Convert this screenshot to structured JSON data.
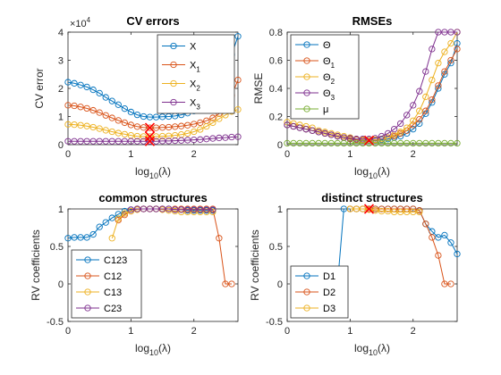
{
  "chart_data": [
    {
      "id": "cv",
      "type": "line",
      "title": "CV errors",
      "xlabel": "log10(λ)",
      "ylabel": "CV error",
      "y_multiplier": "×10^4",
      "xlim": [
        0,
        2.7
      ],
      "ylim": [
        0,
        4
      ],
      "xticks": [
        0,
        1,
        2
      ],
      "yticks": [
        0,
        1,
        2,
        3,
        4
      ],
      "grid": false,
      "legend_position": "top-right",
      "x": [
        0,
        0.1,
        0.2,
        0.3,
        0.4,
        0.5,
        0.6,
        0.7,
        0.8,
        0.9,
        1.0,
        1.1,
        1.2,
        1.3,
        1.4,
        1.5,
        1.6,
        1.7,
        1.8,
        1.9,
        2.0,
        2.1,
        2.2,
        2.3,
        2.4,
        2.5,
        2.6,
        2.7
      ],
      "series": [
        {
          "name": "X",
          "sub": "",
          "color": "#0072BD",
          "values": [
            2.22,
            2.18,
            2.12,
            2.05,
            1.95,
            1.83,
            1.68,
            1.55,
            1.42,
            1.28,
            1.16,
            1.06,
            1.0,
            0.98,
            0.98,
            0.99,
            1.0,
            1.02,
            1.06,
            1.12,
            1.2,
            1.3,
            1.45,
            1.65,
            2.0,
            2.7,
            3.2,
            3.85
          ]
        },
        {
          "name": "X",
          "sub": "1",
          "color": "#D95319",
          "values": [
            1.4,
            1.38,
            1.34,
            1.29,
            1.22,
            1.14,
            1.04,
            0.95,
            0.86,
            0.78,
            0.7,
            0.64,
            0.61,
            0.6,
            0.6,
            0.61,
            0.62,
            0.64,
            0.66,
            0.69,
            0.73,
            0.78,
            0.85,
            0.95,
            1.1,
            1.35,
            1.75,
            2.3
          ]
        },
        {
          "name": "X",
          "sub": "2",
          "color": "#EDB120",
          "values": [
            0.72,
            0.71,
            0.69,
            0.66,
            0.62,
            0.57,
            0.51,
            0.46,
            0.41,
            0.37,
            0.33,
            0.3,
            0.29,
            0.29,
            0.29,
            0.3,
            0.31,
            0.33,
            0.36,
            0.4,
            0.46,
            0.54,
            0.65,
            0.78,
            0.92,
            1.05,
            1.18,
            1.25
          ]
        },
        {
          "name": "X",
          "sub": "3",
          "color": "#7E2F8E",
          "values": [
            0.12,
            0.12,
            0.12,
            0.12,
            0.12,
            0.12,
            0.12,
            0.12,
            0.12,
            0.12,
            0.12,
            0.12,
            0.12,
            0.12,
            0.12,
            0.13,
            0.13,
            0.14,
            0.15,
            0.16,
            0.17,
            0.18,
            0.2,
            0.22,
            0.24,
            0.25,
            0.27,
            0.28
          ]
        }
      ],
      "marker_x": 1.3,
      "marker_values": [
        0.6,
        0.29,
        0.12
      ]
    },
    {
      "id": "rmse",
      "type": "line",
      "title": "RMSEs",
      "xlabel": "log10(λ)",
      "ylabel": "RMSE",
      "xlim": [
        0,
        2.7
      ],
      "ylim": [
        0,
        0.8
      ],
      "xticks": [
        0,
        1,
        2
      ],
      "yticks": [
        0,
        0.2,
        0.4,
        0.6,
        0.8
      ],
      "ytick_labels": [
        "0",
        "0.2",
        "0.4",
        "0.6",
        "0.8"
      ],
      "grid": false,
      "legend_position": "top-left",
      "x": [
        0,
        0.1,
        0.2,
        0.3,
        0.4,
        0.5,
        0.6,
        0.7,
        0.8,
        0.9,
        1.0,
        1.1,
        1.2,
        1.3,
        1.4,
        1.5,
        1.6,
        1.7,
        1.8,
        1.9,
        2.0,
        2.1,
        2.2,
        2.3,
        2.4,
        2.5,
        2.6,
        2.7
      ],
      "series": [
        {
          "name": "Θ",
          "sub": "",
          "color": "#0072BD",
          "values": [
            0.14,
            0.13,
            0.12,
            0.11,
            0.1,
            0.09,
            0.08,
            0.07,
            0.06,
            0.05,
            0.04,
            0.035,
            0.03,
            0.03,
            0.03,
            0.035,
            0.04,
            0.05,
            0.06,
            0.08,
            0.11,
            0.15,
            0.22,
            0.3,
            0.4,
            0.5,
            0.58,
            0.72
          ]
        },
        {
          "name": "Θ",
          "sub": "1",
          "color": "#D95319",
          "values": [
            0.14,
            0.13,
            0.12,
            0.11,
            0.1,
            0.09,
            0.08,
            0.07,
            0.06,
            0.05,
            0.04,
            0.035,
            0.03,
            0.03,
            0.035,
            0.04,
            0.05,
            0.06,
            0.08,
            0.1,
            0.14,
            0.18,
            0.24,
            0.32,
            0.42,
            0.52,
            0.6,
            0.68
          ]
        },
        {
          "name": "Θ",
          "sub": "2",
          "color": "#EDB120",
          "values": [
            0.16,
            0.15,
            0.14,
            0.13,
            0.12,
            0.1,
            0.09,
            0.08,
            0.07,
            0.06,
            0.05,
            0.04,
            0.035,
            0.03,
            0.035,
            0.04,
            0.05,
            0.07,
            0.09,
            0.12,
            0.17,
            0.24,
            0.34,
            0.46,
            0.58,
            0.66,
            0.72,
            0.8
          ]
        },
        {
          "name": "Θ",
          "sub": "3",
          "color": "#7E2F8E",
          "values": [
            0.14,
            0.13,
            0.12,
            0.11,
            0.1,
            0.09,
            0.08,
            0.07,
            0.06,
            0.05,
            0.045,
            0.04,
            0.04,
            0.04,
            0.045,
            0.06,
            0.08,
            0.11,
            0.15,
            0.21,
            0.28,
            0.38,
            0.52,
            0.68,
            0.8,
            0.8,
            0.8,
            0.8
          ]
        },
        {
          "name": "μ",
          "sub": "",
          "color": "#77AC30",
          "values": [
            0.01,
            0.01,
            0.01,
            0.01,
            0.01,
            0.01,
            0.01,
            0.01,
            0.01,
            0.01,
            0.01,
            0.01,
            0.01,
            0.01,
            0.01,
            0.01,
            0.01,
            0.01,
            0.01,
            0.01,
            0.01,
            0.01,
            0.01,
            0.01,
            0.01,
            0.01,
            0.01,
            0.01
          ]
        }
      ],
      "marker_x": 1.3,
      "marker_values": [
        0.03
      ]
    },
    {
      "id": "common",
      "type": "line",
      "title": "common structures",
      "xlabel": "log10(λ)",
      "ylabel": "RV coefficients",
      "xlim": [
        0,
        2.7
      ],
      "ylim": [
        -0.5,
        1
      ],
      "xticks": [
        0,
        1,
        2
      ],
      "yticks": [
        -0.5,
        0,
        0.5,
        1
      ],
      "ytick_labels": [
        "-0.5",
        "0",
        "0.5",
        "1"
      ],
      "grid": false,
      "legend_position": "bottom-left",
      "x": [
        0,
        0.1,
        0.2,
        0.3,
        0.4,
        0.5,
        0.6,
        0.7,
        0.8,
        0.9,
        1.0,
        1.1,
        1.2,
        1.3,
        1.4,
        1.5,
        1.6,
        1.7,
        1.8,
        1.9,
        2.0,
        2.1,
        2.2,
        2.3,
        2.4,
        2.5,
        2.6,
        2.7
      ],
      "series": [
        {
          "name": "C123",
          "color": "#0072BD",
          "x": [
            0,
            0.1,
            0.2,
            0.3,
            0.4,
            0.5,
            0.6,
            0.7,
            0.8,
            0.9,
            1.0,
            1.1,
            1.2,
            1.3,
            1.4,
            1.5,
            1.6,
            1.7,
            1.8,
            1.9,
            2.0,
            2.1,
            2.2,
            2.3
          ],
          "values": [
            0.61,
            0.62,
            0.62,
            0.62,
            0.66,
            0.76,
            0.82,
            0.88,
            0.93,
            0.97,
            0.99,
            1.0,
            1.0,
            1.0,
            1.0,
            1.0,
            1.0,
            0.99,
            0.99,
            0.98,
            0.98,
            0.98,
            0.98,
            0.98
          ]
        },
        {
          "name": "C12",
          "color": "#D95319",
          "x": [
            0.8,
            0.9,
            1.0,
            1.1,
            1.2,
            1.3,
            1.4,
            1.5,
            1.6,
            1.7,
            1.8,
            1.9,
            2.0,
            2.1,
            2.2,
            2.3,
            2.4,
            2.5,
            2.6
          ],
          "values": [
            0.85,
            0.92,
            0.97,
            1.0,
            1.0,
            1.0,
            1.0,
            1.0,
            1.0,
            1.0,
            1.0,
            1.0,
            1.0,
            1.0,
            1.0,
            1.0,
            0.61,
            0.0,
            0.0
          ]
        },
        {
          "name": "C13",
          "color": "#EDB120",
          "x": [
            0.7,
            0.8,
            0.9,
            1.0,
            1.1,
            1.2,
            1.3,
            1.4,
            1.5,
            1.6,
            1.7,
            1.8,
            1.9,
            2.0,
            2.1,
            2.2,
            2.3
          ],
          "values": [
            0.61,
            0.87,
            0.94,
            0.97,
            0.99,
            1.0,
            1.0,
            1.0,
            0.99,
            0.98,
            0.97,
            0.96,
            0.96,
            0.96,
            0.96,
            0.96,
            0.96
          ]
        },
        {
          "name": "C23",
          "color": "#7E2F8E",
          "x": [
            1.0,
            1.1,
            1.2,
            1.3,
            1.4,
            1.5,
            1.6,
            1.7,
            1.8,
            1.9,
            2.0,
            2.1,
            2.2,
            2.3
          ],
          "values": [
            0.99,
            1.0,
            1.0,
            1.0,
            1.0,
            1.0,
            1.0,
            0.99,
            0.99,
            0.99,
            0.99,
            0.99,
            0.99,
            0.99
          ]
        }
      ]
    },
    {
      "id": "distinct",
      "type": "line",
      "title": "distinct structures",
      "xlabel": "log10(λ)",
      "ylabel": "RV coefficients",
      "xlim": [
        0,
        2.7
      ],
      "ylim": [
        -0.5,
        1
      ],
      "xticks": [
        0,
        1,
        2
      ],
      "yticks": [
        -0.5,
        0,
        0.5,
        1
      ],
      "ytick_labels": [
        "-0.5",
        "0",
        "0.5",
        "1"
      ],
      "grid": false,
      "legend_position": "bottom-left",
      "series": [
        {
          "name": "D1",
          "color": "#0072BD",
          "x": [
            0.8,
            0.9,
            1.0,
            1.1,
            1.2,
            1.3,
            1.4,
            1.5,
            1.6,
            1.7,
            1.8,
            1.9,
            2.0,
            2.1,
            2.2,
            2.3,
            2.4,
            2.5,
            2.6,
            2.7
          ],
          "values": [
            0.0,
            1.0,
            1.0,
            1.0,
            1.0,
            1.0,
            1.0,
            1.0,
            1.0,
            1.0,
            1.0,
            1.0,
            1.0,
            0.98,
            0.8,
            0.7,
            0.62,
            0.65,
            0.55,
            0.4
          ]
        },
        {
          "name": "D2",
          "color": "#D95319",
          "x": [
            1.0,
            1.1,
            1.2,
            1.3,
            1.4,
            1.5,
            1.6,
            1.7,
            1.8,
            1.9,
            2.0,
            2.1,
            2.2,
            2.3,
            2.4,
            2.5,
            2.6
          ],
          "values": [
            1.0,
            1.0,
            1.0,
            1.0,
            1.0,
            1.0,
            1.0,
            1.0,
            1.0,
            1.0,
            1.0,
            0.98,
            0.8,
            0.62,
            0.38,
            0.0,
            0.0
          ]
        },
        {
          "name": "D3",
          "color": "#EDB120",
          "x": [
            1.0,
            1.1,
            1.2,
            1.3,
            1.4,
            1.5,
            1.6,
            1.7,
            1.8,
            1.9,
            2.0,
            2.1
          ],
          "values": [
            1.0,
            1.0,
            1.0,
            0.99,
            0.98,
            0.97,
            0.97,
            0.96,
            0.96,
            0.96,
            0.96,
            0.96
          ]
        }
      ],
      "marker_x": 1.3,
      "marker_values": [
        1.0
      ]
    }
  ]
}
